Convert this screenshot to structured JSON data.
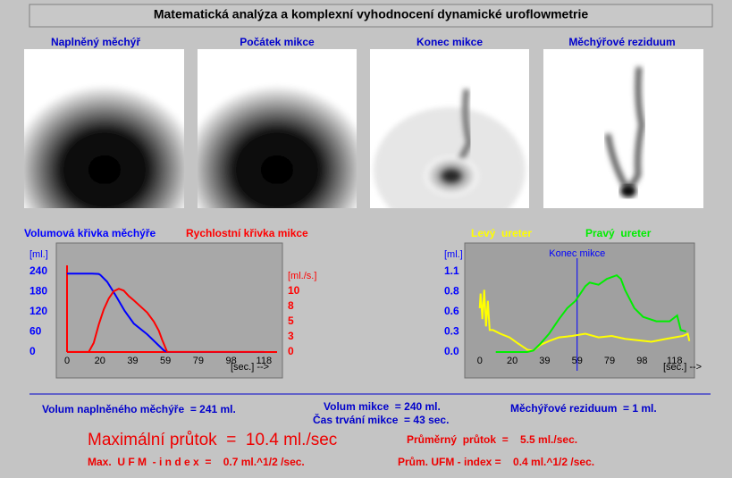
{
  "window_title": "Matematická analýza a komplexní vyhodnocení dynamické uroflowmetrie",
  "images": [
    {
      "label": "Naplněný měchýř"
    },
    {
      "label": "Počátek mikce"
    },
    {
      "label": "Konec mikce"
    },
    {
      "label": "Měchýřové reziduum"
    }
  ],
  "chart_data": [
    {
      "type": "line",
      "series": [
        {
          "name": "Volumová křivka měchýře",
          "color": "#0000ff",
          "x": [
            0,
            5,
            10,
            15,
            19,
            20,
            24,
            29,
            34.5,
            40,
            48,
            54,
            58,
            60,
            70,
            80,
            90,
            100,
            110,
            118
          ],
          "values": [
            234,
            234,
            234,
            234,
            233,
            230,
            210,
            170,
            123,
            85,
            53,
            24,
            5,
            0,
            0,
            0,
            0,
            0,
            0,
            0
          ]
        },
        {
          "name": "Rychlostní křivka mikce",
          "color": "#ff0000",
          "axis": "y2",
          "x": [
            0,
            13,
            16,
            19,
            22,
            25,
            28,
            31,
            34,
            37,
            40,
            44,
            48,
            52,
            55,
            57,
            60,
            70,
            80,
            90,
            100,
            110,
            118
          ],
          "values": [
            0,
            0,
            1.5,
            4.5,
            7,
            8.8,
            10,
            10.4,
            10.1,
            9.2,
            8.5,
            7.5,
            6.5,
            5,
            3.5,
            2,
            0,
            0,
            0,
            0,
            0,
            0,
            0
          ]
        }
      ],
      "xlim": [
        -3.75,
        128
      ],
      "xticks": [
        0,
        {
          "value": 19.67,
          "label": "20"
        },
        {
          "value": 39.33,
          "label": "39"
        },
        59,
        {
          "value": 78.67,
          "label": "79"
        },
        {
          "value": 98.33,
          "label": "98"
        },
        118
      ],
      "ylim": [
        -56,
        312
      ],
      "yticks": [
        0,
        60,
        120,
        180,
        240
      ],
      "y2lim": [
        -3.1,
        17.2
      ],
      "y2ticks": [
        0,
        {
          "value": 2.5,
          "label": "3"
        },
        5,
        {
          "value": 7.5,
          "label": "8"
        },
        10
      ],
      "ytick_color": "#0000ff",
      "y2tick_color": "#ff0000",
      "axis_color": "#ff0000",
      "y_label": "[ml.]",
      "y2_label": "[ml./s.]",
      "x_label": "[sec.] -->"
    },
    {
      "type": "line",
      "series": [
        {
          "name": "Levý  ureter",
          "color": "#ffff00",
          "x": [
            0,
            0.5,
            1.6,
            2.7,
            3.8,
            4.9,
            6,
            8,
            12.5,
            18,
            23,
            29,
            32.5,
            37,
            42,
            48,
            56,
            64,
            72,
            80,
            88,
            96,
            104,
            113,
            118,
            123,
            126,
            127
          ],
          "values": [
            0.6,
            0.8,
            0.45,
            0.85,
            0.35,
            0.7,
            0.3,
            0.3,
            0.25,
            0.2,
            0.12,
            0.03,
            0.02,
            0.1,
            0.15,
            0.2,
            0.22,
            0.25,
            0.2,
            0.22,
            0.18,
            0.16,
            0.14,
            0.18,
            0.2,
            0.22,
            0.25,
            0.15
          ]
        },
        {
          "name": "Pravý  ureter",
          "color": "#00ee00",
          "x": [
            9.7,
            28.7,
            32.5,
            37,
            42,
            48,
            53,
            58,
            64,
            66.6,
            72,
            77,
            83,
            85.5,
            88,
            93.7,
            99,
            107,
            115,
            119.6,
            121.8,
            125
          ],
          "values": [
            0,
            0,
            0.02,
            0.12,
            0.25,
            0.45,
            0.6,
            0.7,
            0.9,
            0.95,
            0.92,
            1.0,
            1.05,
            1.0,
            0.85,
            0.6,
            0.48,
            0.42,
            0.42,
            0.5,
            0.3,
            0.28
          ]
        }
      ],
      "xlim": [
        -8,
        129
      ],
      "xticks": [
        0,
        {
          "value": 19.67,
          "label": "20"
        },
        {
          "value": 39.33,
          "label": "39"
        },
        59,
        {
          "value": 78.67,
          "label": "79"
        },
        {
          "value": 98.33,
          "label": "98"
        },
        118
      ],
      "ylim": [
        -0.257,
        1.43
      ],
      "yticks": [
        {
          "value": 0,
          "label": "0.0"
        },
        {
          "value": 0.275,
          "label": "0.3"
        },
        {
          "value": 0.55,
          "label": "0.6"
        },
        {
          "value": 0.825,
          "label": "0.8"
        },
        1.1
      ],
      "ytick_color": "#0000ff",
      "y_label": "[ml.]",
      "x_label": "[sec.] -->",
      "annotation": {
        "text": "Konec mikce",
        "x": 59,
        "color": "#0000ff"
      }
    }
  ],
  "results": {
    "filled_volume": "Volum naplněného měchýře  = 241 ml.",
    "voiding_volume": "Volum mikce  = 240 ml.",
    "residual": "Měchýřové reziduum  = 1 ml.",
    "duration": "Čas trvání mikce  = 43 sec.",
    "max_flow": "Maximální průtok  =  10.4 ml./sec",
    "mean_flow": "Průměrný  průtok  =    5.5 ml./sec.",
    "max_ufm": "Max.  U F M  - i n d e x  =    0.7 ml.^1/2 /sec.",
    "mean_ufm": "Prům. UFM - index =    0.4 ml.^1/2 /sec."
  }
}
